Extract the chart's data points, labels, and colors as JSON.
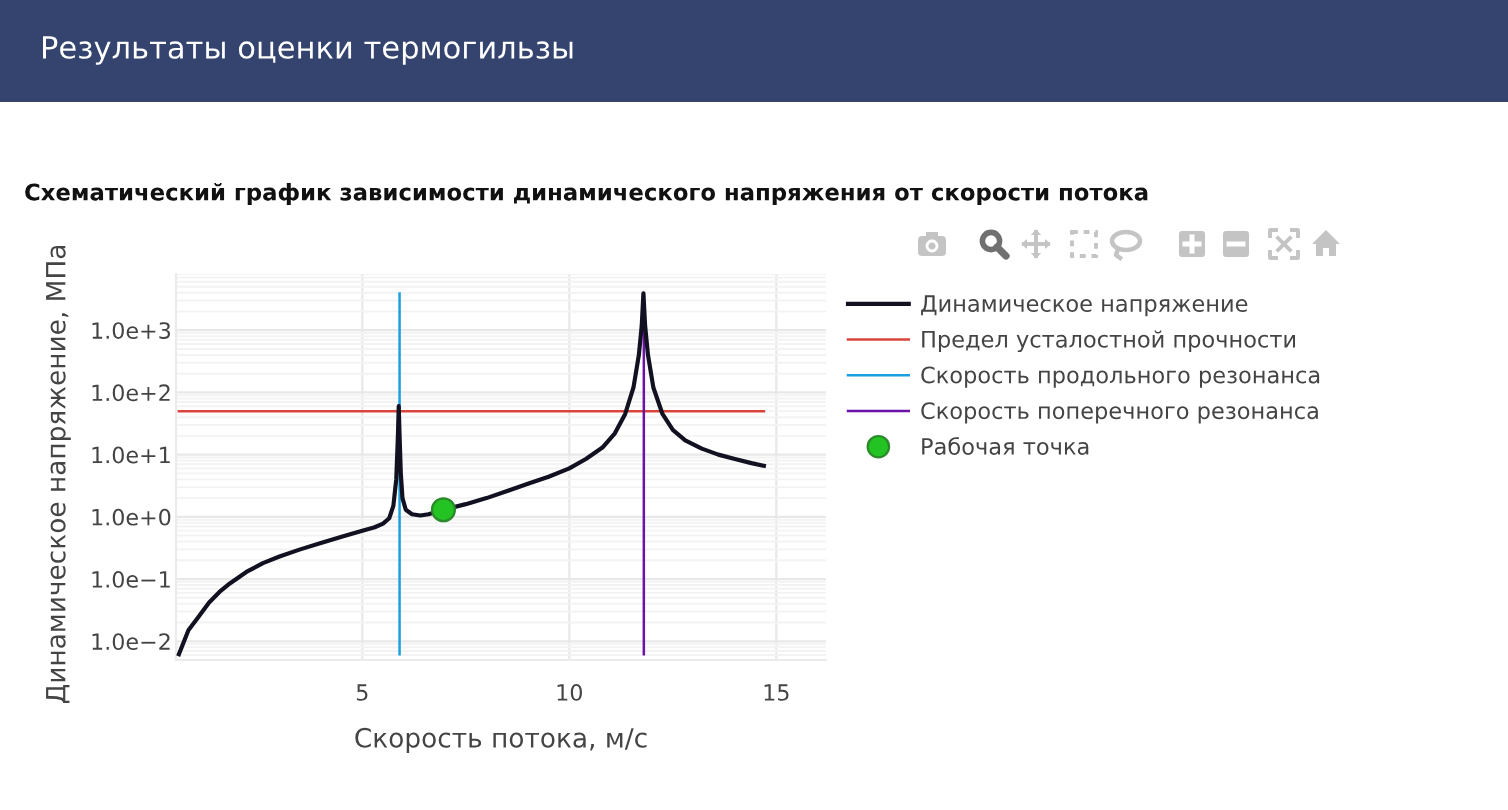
{
  "chart_data": {
    "type": "line",
    "title": "Результаты оценки термогильзы",
    "subtitle": "Схематический график зависимости динамического напряжения от скорости потока",
    "xlabel": "Скорость потока, м/с",
    "ylabel": "Динамическое напряжение, МПа",
    "xlim": [
      0.5,
      16.2
    ],
    "xticks": [
      5,
      10,
      15
    ],
    "ylim": [
      0.005,
      8000
    ],
    "yticks": [
      {
        "value": 0.01,
        "label": "1.0e−2"
      },
      {
        "value": 0.1,
        "label": "1.0e−1"
      },
      {
        "value": 1,
        "label": "1.0e+0"
      },
      {
        "value": 10,
        "label": "1.0e+1"
      },
      {
        "value": 100,
        "label": "1.0e+2"
      },
      {
        "value": 1000,
        "label": "1.0e+3"
      }
    ],
    "log": "y",
    "grid": true,
    "legend": "right",
    "series": [
      {
        "name": "Динамическое напряжение",
        "color": "#111122",
        "x": [
          0.57,
          0.8,
          1.05,
          1.3,
          1.55,
          1.8,
          2.2,
          2.6,
          3.0,
          3.5,
          4.0,
          4.5,
          5.0,
          5.3,
          5.5,
          5.65,
          5.75,
          5.82,
          5.86,
          5.88,
          5.9,
          5.93,
          5.97,
          6.05,
          6.2,
          6.4,
          6.6,
          6.96,
          7.5,
          8.0,
          8.5,
          9.0,
          9.5,
          10.0,
          10.4,
          10.8,
          11.1,
          11.35,
          11.55,
          11.68,
          11.75,
          11.79,
          11.83,
          11.9,
          12.03,
          12.25,
          12.5,
          12.8,
          13.2,
          13.6,
          14.0,
          14.4,
          14.7
        ],
        "values": [
          0.0062,
          0.015,
          0.025,
          0.042,
          0.062,
          0.085,
          0.13,
          0.18,
          0.23,
          0.3,
          0.38,
          0.48,
          0.6,
          0.68,
          0.78,
          0.95,
          1.5,
          4,
          20,
          60,
          20,
          5,
          2,
          1.3,
          1.1,
          1.05,
          1.1,
          1.3,
          1.6,
          2.0,
          2.6,
          3.4,
          4.4,
          6,
          8.5,
          13,
          22,
          45,
          120,
          400,
          1200,
          3900,
          1200,
          400,
          120,
          45,
          25,
          17,
          12.5,
          10,
          8.5,
          7.3,
          6.6
        ]
      },
      {
        "name": "Предел усталостной прочности",
        "color": "#d9453b",
        "x": [
          0.57,
          14.7
        ],
        "values": [
          50,
          50
        ]
      },
      {
        "name": "Скорость продольного резонанса",
        "color": "#1aa0e0",
        "x": [
          5.9,
          5.9
        ],
        "values": [
          0.0062,
          3900
        ]
      },
      {
        "name": "Скорость поперечного резонанса",
        "color": "#6c12a8",
        "x": [
          11.8,
          11.8
        ],
        "values": [
          0.0062,
          3900
        ]
      },
      {
        "name": "Рабочая точка",
        "type": "scatter",
        "marker": "circle",
        "color": "#22c322",
        "x": [
          6.96
        ],
        "values": [
          1.3
        ]
      }
    ]
  }
}
